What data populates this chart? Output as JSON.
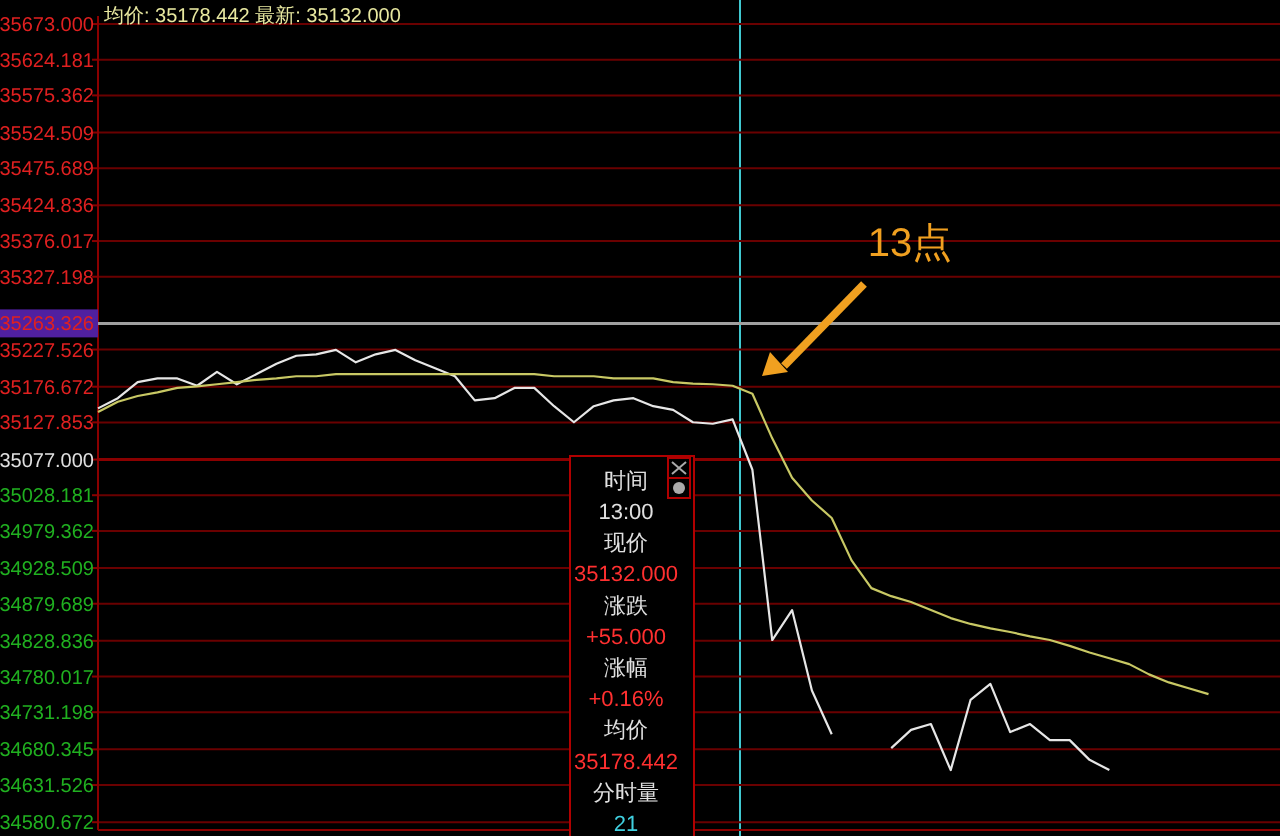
{
  "chart_data": {
    "type": "line",
    "title": "均价: 35178.442 最新: 35132.000",
    "categories": [
      null,
      null,
      null,
      null,
      null,
      null,
      null,
      null,
      null,
      null,
      null,
      null,
      null,
      null,
      null,
      null,
      null,
      null,
      null,
      null,
      null,
      null,
      null,
      null,
      null,
      null,
      null,
      null,
      null,
      null,
      null,
      null,
      null,
      null,
      null,
      null,
      null,
      null,
      null,
      null,
      null,
      null,
      null,
      null,
      null,
      null,
      null,
      null,
      null,
      null,
      null,
      null,
      null,
      null,
      null,
      null,
      null,
      null,
      null,
      null
    ],
    "series": [
      {
        "color": "#e6e6e6",
        "values": [
          35147,
          35161,
          35183,
          35188,
          35188,
          35178,
          35197,
          35180,
          35194,
          35208,
          35219,
          35221,
          35227,
          35210,
          35221,
          35227,
          35213,
          35202,
          35191,
          35158,
          35161,
          35175,
          35175,
          35150,
          35128,
          35150,
          35158,
          35161,
          35150,
          35145,
          35128,
          35126,
          35132,
          35063,
          34830,
          34871,
          34761,
          34701,
          null,
          null,
          34682,
          34707,
          34715,
          34652,
          34748,
          34770,
          34704,
          34715,
          34693,
          34693,
          34666,
          34652,
          null,
          null,
          null,
          null,
          null,
          null,
          null,
          null
        ]
      },
      {
        "color": "#c8c864",
        "values": [
          35142,
          35156,
          35164,
          35169,
          35175,
          35177,
          35180,
          35183,
          35186,
          35188,
          35191,
          35191,
          35194,
          35194,
          35194,
          35194,
          35194,
          35194,
          35194,
          35194,
          35194,
          35194,
          35194,
          35191,
          35191,
          35191,
          35188,
          35188,
          35188,
          35183,
          35181,
          35180,
          35178,
          35167,
          35106,
          35052,
          35021,
          34997,
          34939,
          34901,
          34890,
          34882,
          34871,
          34860,
          34852,
          34846,
          34841,
          34835,
          34830,
          34822,
          34813,
          34805,
          34797,
          34783,
          34772,
          34764,
          34756,
          null,
          null,
          null
        ]
      }
    ],
    "ylim": [
      34570,
      35684
    ],
    "yticks": [
      {
        "value": 35673,
        "label": "35673.000"
      },
      {
        "value": 35624.181,
        "label": "35624.181"
      },
      {
        "value": 35575.362,
        "label": "35575.362"
      },
      {
        "value": 35524.509,
        "label": "35524.509"
      },
      {
        "value": 35475.689,
        "label": "35475.689"
      },
      {
        "value": 35424.836,
        "label": "35424.836"
      },
      {
        "value": 35376.017,
        "label": "35376.017"
      },
      {
        "value": 35327.198,
        "label": "35327.198"
      },
      {
        "value": 35227.526,
        "label": "35227.526"
      },
      {
        "value": 35176.672,
        "label": "35176.672"
      },
      {
        "value": 35127.853,
        "label": "35127.853"
      },
      {
        "value": 35077,
        "label": "35077.000"
      },
      {
        "value": 35028.181,
        "label": "35028.181"
      },
      {
        "value": 34979.362,
        "label": "34979.362"
      },
      {
        "value": 34928.509,
        "label": "34928.509"
      },
      {
        "value": 34879.689,
        "label": "34879.689"
      },
      {
        "value": 34828.836,
        "label": "34828.836"
      },
      {
        "value": 34780.017,
        "label": "34780.017"
      },
      {
        "value": 34731.198,
        "label": "34731.198"
      },
      {
        "value": 34680.345,
        "label": "34680.345"
      },
      {
        "value": 34631.526,
        "label": "34631.526"
      },
      {
        "value": 34580.672,
        "label": "34580.672"
      }
    ],
    "grid": "y",
    "marker": "none",
    "line_style": "solid",
    "tick_labels": "y",
    "ref_lines": [
      {
        "axis": "y",
        "value": 35077,
        "color": "#8a0000"
      },
      {
        "axis": "y",
        "value": 35263.326,
        "label": "35263.326",
        "color": "#a0a0a0"
      }
    ],
    "annotations": [
      "13点",
      "时间",
      "13:00",
      "现价",
      "35132.000",
      "涨跌",
      "+55.000",
      "涨幅",
      "+0.16%",
      "均价",
      "35178.442",
      "分时量",
      "21"
    ]
  }
}
